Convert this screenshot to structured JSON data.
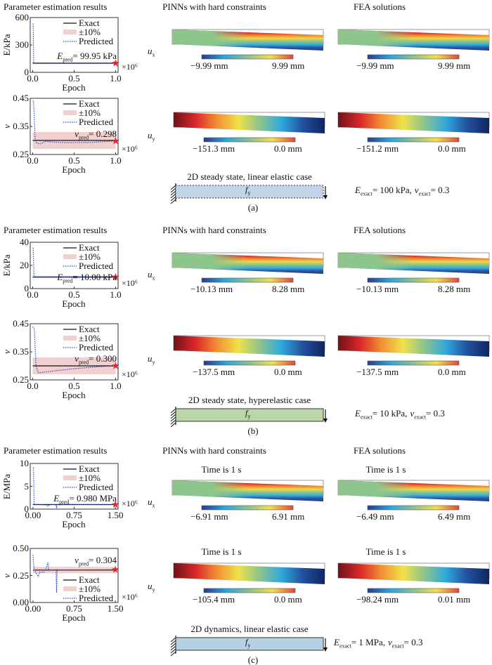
{
  "colors": {
    "exact": "#111111",
    "band": "#f2d0d0",
    "predicted": "#2b4fc0",
    "star": "#e8242a",
    "colorbar": [
      "#2b3a8c",
      "#2aa7de",
      "#8dc08f",
      "#f2e24a",
      "#e2463a"
    ]
  },
  "panels": [
    {
      "label": "(a)",
      "left_title": "Parameter estimation results",
      "pinn_title": "PINNs with hard constraints",
      "fea_title": "FEA solutions",
      "ux_label": "u",
      "ux_sub": "x",
      "uy_label": "u",
      "uy_sub": "y",
      "time_label": null,
      "ux": {
        "pinn": [
          "−9.99 mm",
          "9.99 mm"
        ],
        "fea": [
          "−9.99 mm",
          "9.99 mm"
        ]
      },
      "uy": {
        "pinn": [
          "−151.3 mm",
          "0.0 mm"
        ],
        "fea": [
          "−151.2 mm",
          "0.0 mm"
        ]
      },
      "case_title": "2D steady state, linear elastic case",
      "force": "f",
      "force_sub": "y",
      "box_fill": "#c3d4e8",
      "box_style": "dashed",
      "exact_E_sym": "E",
      "exact_E_sub": "exact",
      "exact_E_val": "= 100 kPa,",
      "exact_nu_sym": "ν",
      "exact_nu_sub": "exact",
      "exact_nu_val": "= 0.3"
    },
    {
      "label": "(b)",
      "left_title": "Parameter estimation results",
      "pinn_title": "PINNs with hard constraints",
      "fea_title": "FEA solutions",
      "ux_label": "u",
      "ux_sub": "x",
      "uy_label": "u",
      "uy_sub": "y",
      "time_label": null,
      "ux": {
        "pinn": [
          "−10.13 mm",
          "8.28 mm"
        ],
        "fea": [
          "−10.13 mm",
          "8.28 mm"
        ]
      },
      "uy": {
        "pinn": [
          "−137.5 mm",
          "0.0 mm"
        ],
        "fea": [
          "−137.5 mm",
          "0.0 mm"
        ]
      },
      "case_title": "2D steady state, hyperelastic case",
      "force": "f",
      "force_sub": "y",
      "box_fill": "#bcd6a8",
      "box_style": "solid",
      "exact_E_sym": "E",
      "exact_E_sub": "exact",
      "exact_E_val": "= 10 kPa,",
      "exact_nu_sym": "ν",
      "exact_nu_sub": "exact",
      "exact_nu_val": "= 0.3"
    },
    {
      "label": "(c)",
      "left_title": "Parameter estimation results",
      "pinn_title": "PINNs with hard constraints",
      "fea_title": "FEA solutions",
      "ux_label": "u",
      "ux_sub": "x",
      "uy_label": "u",
      "uy_sub": "y",
      "time_label": "Time is 1 s",
      "ux": {
        "pinn": [
          "−6.91 mm",
          "6.91 mm"
        ],
        "fea": [
          "−6.49 mm",
          "6.49 mm"
        ]
      },
      "uy": {
        "pinn": [
          "−105.4 mm",
          "0.0 mm"
        ],
        "fea": [
          "−98.24 mm",
          "0.01 mm"
        ]
      },
      "case_title": "2D dynamics, linear elastic case",
      "force": "f",
      "force_sub": "y",
      "box_fill": "#b6d0e4",
      "box_style": "solid",
      "exact_E_sym": "E",
      "exact_E_sub": "exact",
      "exact_E_val": "= 1 MPa,",
      "exact_nu_sym": "ν",
      "exact_nu_sub": "exact",
      "exact_nu_val": "= 0.3"
    }
  ],
  "chart_data": [
    {
      "type": "line",
      "panel": "a",
      "ylabel": "E/kPa",
      "xlabel": "Epoch",
      "x_multiplier": "×10⁶",
      "xlim": [
        -0.03,
        1.03
      ],
      "xticks": [
        "0.0",
        "0.5",
        "1.0"
      ],
      "xtick_values": [
        0,
        0.5,
        1
      ],
      "ylim": [
        0,
        600
      ],
      "yticks": [
        "0",
        "300",
        "600"
      ],
      "ytick_values": [
        0,
        300,
        600
      ],
      "legend": [
        "Exact",
        "±10%",
        "Predicted"
      ],
      "legend_position": "top-right",
      "exact": 100,
      "band": [
        90,
        110
      ],
      "annotation": {
        "sym": "E",
        "sub": "pred",
        "val": "= 99.95 kPa"
      },
      "final": [
        1.0,
        99.95
      ],
      "predicted": [
        [
          0,
          530
        ],
        [
          0.006,
          530
        ],
        [
          0.012,
          100
        ],
        [
          0.05,
          100
        ],
        [
          1.0,
          99.95
        ]
      ]
    },
    {
      "type": "line",
      "panel": "a",
      "ylabel": "ν",
      "xlabel": "Epoch",
      "x_multiplier": "×10⁶",
      "xlim": [
        -0.03,
        1.03
      ],
      "xticks": [
        "0.0",
        "0.5",
        "1.0"
      ],
      "xtick_values": [
        0,
        0.5,
        1
      ],
      "ylim": [
        0.25,
        0.45
      ],
      "yticks": [
        "0.25",
        "0.35",
        "0.45"
      ],
      "ytick_values": [
        0.25,
        0.35,
        0.45
      ],
      "legend": [
        "Exact",
        "±10%",
        "Predicted"
      ],
      "legend_position": "top-right",
      "exact": 0.3,
      "band": [
        0.27,
        0.33
      ],
      "annotation": {
        "sym": "ν",
        "sub": "pred",
        "val": "= 0.298"
      },
      "final": [
        1.0,
        0.298
      ],
      "predicted": [
        [
          0,
          0.44
        ],
        [
          0.01,
          0.44
        ],
        [
          0.03,
          0.3
        ],
        [
          0.05,
          0.29
        ],
        [
          0.1,
          0.288
        ],
        [
          0.15,
          0.297
        ],
        [
          0.2,
          0.295
        ],
        [
          0.4,
          0.292
        ],
        [
          0.7,
          0.293
        ],
        [
          1.0,
          0.298
        ]
      ]
    },
    {
      "type": "line",
      "panel": "b",
      "ylabel": "E/kPa",
      "xlabel": "Epoch",
      "x_multiplier": "×10⁶",
      "xlim": [
        -0.03,
        1.03
      ],
      "xticks": [
        "0.0",
        "0.5",
        "1.0"
      ],
      "xtick_values": [
        0,
        0.5,
        1
      ],
      "ylim": [
        0,
        40
      ],
      "yticks": [
        "0",
        "20",
        "40"
      ],
      "ytick_values": [
        0,
        20,
        40
      ],
      "legend": [
        "Exact",
        "±10%",
        "Predicted"
      ],
      "legend_position": "top-right",
      "exact": 10,
      "band": [
        9,
        11
      ],
      "annotation": {
        "sym": "E",
        "sub": "pred",
        "val": "= 10.00 kPa"
      },
      "final": [
        1.0,
        10.0
      ],
      "predicted": [
        [
          0,
          35
        ],
        [
          0.006,
          35
        ],
        [
          0.015,
          10
        ],
        [
          0.05,
          10
        ],
        [
          1.0,
          10.0
        ]
      ]
    },
    {
      "type": "line",
      "panel": "b",
      "ylabel": "ν",
      "xlabel": "Epoch",
      "x_multiplier": "×10⁶",
      "xlim": [
        -0.03,
        1.03
      ],
      "xticks": [
        "0.0",
        "0.5",
        "1.0"
      ],
      "xtick_values": [
        0,
        0.5,
        1
      ],
      "ylim": [
        0.25,
        0.45
      ],
      "yticks": [
        "0.25",
        "0.35",
        "0.45"
      ],
      "ytick_values": [
        0.25,
        0.35,
        0.45
      ],
      "legend": [
        "Exact",
        "±10%",
        "Predicted"
      ],
      "legend_position": "top-right",
      "exact": 0.3,
      "band": [
        0.27,
        0.33
      ],
      "annotation": {
        "sym": "ν",
        "sub": "pred",
        "val": "= 0.300"
      },
      "final": [
        1.0,
        0.3
      ],
      "predicted": [
        [
          0,
          0.44
        ],
        [
          0.02,
          0.43
        ],
        [
          0.04,
          0.3
        ],
        [
          0.07,
          0.275
        ],
        [
          0.2,
          0.28
        ],
        [
          0.5,
          0.29
        ],
        [
          0.8,
          0.297
        ],
        [
          1.0,
          0.3
        ]
      ]
    },
    {
      "type": "line",
      "panel": "c",
      "ylabel": "E/MPa",
      "xlabel": "Epoch",
      "x_multiplier": "×10⁶",
      "xlim": [
        -0.05,
        1.55
      ],
      "xticks": [
        "0.00",
        "0.75",
        "1.50"
      ],
      "xtick_values": [
        0,
        0.75,
        1.5
      ],
      "ylim": [
        0,
        10
      ],
      "yticks": [
        "0",
        "5",
        "10"
      ],
      "ytick_values": [
        0,
        5,
        10
      ],
      "legend": [
        "Exact",
        "±10%",
        "Predicted"
      ],
      "legend_position": "top-right",
      "exact": 1,
      "band": [
        0.9,
        1.1
      ],
      "annotation": {
        "sym": "E",
        "sub": "pred",
        "val": "= 0.980 MPa"
      },
      "final": [
        1.5,
        0.98
      ],
      "predicted": [
        [
          0,
          9
        ],
        [
          0.01,
          9
        ],
        [
          0.02,
          1
        ],
        [
          0.1,
          1
        ],
        [
          0.25,
          0.9
        ],
        [
          0.28,
          0.6
        ],
        [
          0.3,
          1
        ],
        [
          0.42,
          1
        ],
        [
          0.43,
          0.2
        ],
        [
          0.44,
          1
        ],
        [
          1.5,
          0.98
        ]
      ]
    },
    {
      "type": "line",
      "panel": "c",
      "ylabel": "ν",
      "xlabel": "Epoch",
      "x_multiplier": "×10⁶",
      "xlim": [
        -0.05,
        1.55
      ],
      "xticks": [
        "0.00",
        "0.75",
        "1.50"
      ],
      "xtick_values": [
        0,
        0.75,
        1.5
      ],
      "ylim": [
        0,
        0.5
      ],
      "yticks": [
        "0.00",
        "0.25",
        "0.50"
      ],
      "ytick_values": [
        0,
        0.25,
        0.5
      ],
      "legend": [
        "Exact",
        "±10%",
        "Predicted"
      ],
      "legend_position": "bottom-right",
      "exact": 0.3,
      "band": [
        0.27,
        0.33
      ],
      "annotation": {
        "sym": "ν",
        "sub": "pred",
        "val": "= 0.304"
      },
      "final": [
        1.5,
        0.304
      ],
      "predicted": [
        [
          0,
          0.44
        ],
        [
          0.02,
          0.3
        ],
        [
          0.1,
          0.24
        ],
        [
          0.12,
          0.28
        ],
        [
          0.2,
          0.28
        ],
        [
          0.25,
          0.33
        ],
        [
          0.27,
          0.37
        ],
        [
          0.29,
          0.3
        ],
        [
          0.42,
          0.3
        ],
        [
          0.43,
          0.09
        ],
        [
          0.44,
          0.3
        ],
        [
          1.5,
          0.304
        ]
      ]
    }
  ]
}
